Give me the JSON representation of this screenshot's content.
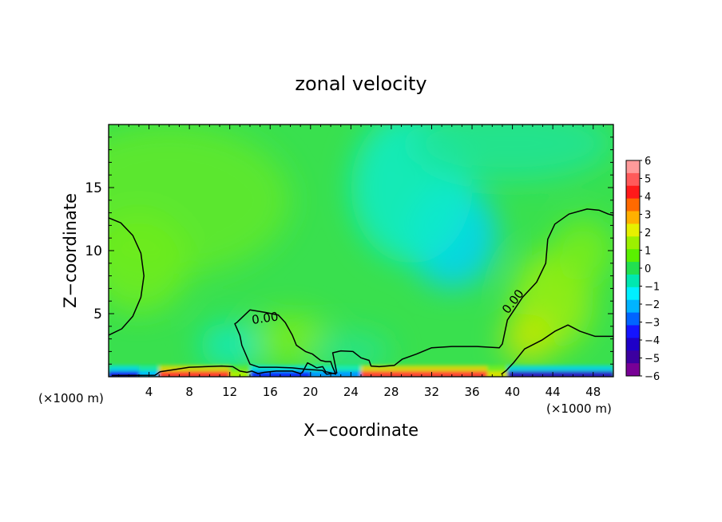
{
  "chart_data": {
    "type": "heatmap",
    "title": "zonal velocity",
    "xlabel": "X−coordinate",
    "ylabel": "Z−coordinate",
    "x_unit_left": "(×1000 m)",
    "x_unit_right": "(×1000 m)",
    "xlim": [
      0,
      50
    ],
    "ylim": [
      0,
      20
    ],
    "x_ticks": [
      4,
      8,
      12,
      16,
      20,
      24,
      28,
      32,
      36,
      40,
      44,
      48
    ],
    "x_tick_labels": [
      "4",
      "8",
      "12",
      "16",
      "20",
      "24",
      "28",
      "32",
      "36",
      "40",
      "44",
      "48"
    ],
    "y_ticks": [
      5,
      10,
      15
    ],
    "y_tick_labels": [
      "5",
      "10",
      "15"
    ],
    "colorbar": {
      "labels": [
        "6",
        "5",
        "4",
        "3",
        "2",
        "1",
        "0",
        "−1",
        "−2",
        "−3",
        "−4",
        "−5",
        "−6"
      ],
      "colors": [
        "#ff9a9a",
        "#ff5a5a",
        "#ff1a1a",
        "#ff6a00",
        "#ffb000",
        "#e6f000",
        "#9cf000",
        "#5af000",
        "#22e050",
        "#00e8b0",
        "#00f0ff",
        "#00b4ff",
        "#0064ff",
        "#1414ff",
        "#1e00c8",
        "#3c00a0",
        "#780096"
      ]
    },
    "contour_labels": [
      "0.00",
      "0.00"
    ],
    "field_blobs": [
      {
        "x": 34,
        "y": 11.2,
        "rx": 4.5,
        "ry": 4.2,
        "value": -2.2
      },
      {
        "x": 30,
        "y": 15,
        "rx": 6,
        "ry": 6,
        "value": -1.3
      },
      {
        "x": 40,
        "y": 18.5,
        "rx": 10,
        "ry": 3,
        "value": -0.8
      },
      {
        "x": 6,
        "y": 14,
        "rx": 12,
        "ry": 6,
        "value": 0.6
      },
      {
        "x": 3,
        "y": 9,
        "rx": 5,
        "ry": 4,
        "value": 0.8
      },
      {
        "x": 44,
        "y": 6,
        "rx": 4,
        "ry": 4,
        "value": 1.3
      },
      {
        "x": 41.5,
        "y": 3,
        "rx": 2.5,
        "ry": 2,
        "value": 1.8
      },
      {
        "x": 18,
        "y": 3,
        "rx": 4,
        "ry": 2,
        "value": 0.9
      },
      {
        "x": 12,
        "y": 2.5,
        "rx": 3,
        "ry": 1.8,
        "value": -1.2
      },
      {
        "x": 24,
        "y": 2,
        "rx": 4,
        "ry": 1.5,
        "value": -0.7
      },
      {
        "x": 47,
        "y": 10,
        "rx": 3,
        "ry": 2.5,
        "value": 0.9
      }
    ],
    "near_surface": [
      {
        "x0": 0,
        "x1": 3,
        "value": -4.5
      },
      {
        "x0": 3,
        "x1": 5,
        "value": -2.5
      },
      {
        "x0": 5,
        "x1": 12,
        "value": 4.8
      },
      {
        "x0": 12,
        "x1": 14,
        "value": 1.5
      },
      {
        "x0": 14,
        "x1": 20,
        "value": -4.2
      },
      {
        "x0": 20,
        "x1": 25,
        "value": -2.8
      },
      {
        "x0": 25,
        "x1": 37.5,
        "value": 5.0
      },
      {
        "x0": 37.5,
        "x1": 39.5,
        "value": 2.0
      },
      {
        "x0": 39.5,
        "x1": 50,
        "value": -4.8
      }
    ],
    "zero_contours": [
      [
        [
          0,
          12.6
        ],
        [
          1.2,
          12.2
        ],
        [
          2.4,
          11.2
        ],
        [
          3.2,
          9.8
        ],
        [
          3.5,
          8.0
        ],
        [
          3.2,
          6.3
        ],
        [
          2.4,
          4.8
        ],
        [
          1.3,
          3.8
        ],
        [
          0,
          3.3
        ]
      ],
      [
        [
          0.3,
          0.1
        ],
        [
          4.6,
          0.12
        ],
        [
          5.1,
          0.4
        ],
        [
          6.4,
          0.55
        ],
        [
          8,
          0.75
        ],
        [
          9.6,
          0.8
        ],
        [
          11.2,
          0.85
        ],
        [
          12.3,
          0.8
        ],
        [
          13.0,
          0.45
        ],
        [
          13.7,
          0.35
        ],
        [
          14.2,
          0.45
        ],
        [
          14.8,
          0.25
        ],
        [
          15.4,
          0.35
        ],
        [
          16.6,
          0.45
        ],
        [
          18.2,
          0.45
        ],
        [
          19.0,
          0.25
        ],
        [
          19.2,
          0.35
        ],
        [
          19.7,
          1.1
        ],
        [
          20.2,
          0.9
        ],
        [
          20.6,
          0.7
        ],
        [
          21.2,
          0.8
        ],
        [
          21.5,
          0.4
        ],
        [
          22.1,
          0.3
        ],
        [
          22.5,
          0.2
        ],
        [
          22.2,
          0.75
        ],
        [
          22.0,
          1.2
        ],
        [
          21.5,
          1.2
        ],
        [
          21.0,
          1.3
        ],
        [
          20.2,
          1.8
        ],
        [
          19.5,
          2.0
        ],
        [
          18.6,
          2.5
        ],
        [
          18.2,
          3.3
        ],
        [
          17.5,
          4.3
        ],
        [
          16.8,
          4.9
        ],
        [
          15.5,
          5.1
        ],
        [
          14.0,
          5.3
        ],
        [
          12.7,
          4.3
        ],
        [
          12.5,
          4.2
        ],
        [
          13.0,
          3.3
        ],
        [
          13.2,
          2.5
        ],
        [
          14.0,
          1.0
        ],
        [
          14.9,
          0.75
        ],
        [
          16.6,
          0.75
        ],
        [
          18.2,
          0.7
        ],
        [
          19.4,
          0.6
        ],
        [
          20.2,
          0.55
        ],
        [
          21.2,
          0.5
        ],
        [
          21.6,
          0.2
        ],
        [
          22.6,
          0.3
        ],
        [
          22.2,
          1.9
        ],
        [
          23.0,
          2.05
        ],
        [
          24.2,
          2.0
        ],
        [
          25.0,
          1.5
        ],
        [
          25.8,
          1.3
        ],
        [
          26.0,
          0.85
        ],
        [
          26.8,
          0.8
        ],
        [
          28.3,
          0.9
        ],
        [
          29.1,
          1.4
        ],
        [
          30.5,
          1.8
        ],
        [
          32.0,
          2.3
        ],
        [
          34.0,
          2.4
        ],
        [
          36.5,
          2.4
        ],
        [
          38.7,
          2.3
        ],
        [
          39.0,
          2.6
        ],
        [
          39.5,
          4.5
        ],
        [
          41.0,
          6.3
        ],
        [
          42.4,
          7.5
        ],
        [
          43.3,
          9.0
        ],
        [
          43.5,
          10.9
        ],
        [
          44.2,
          12.1
        ],
        [
          45.6,
          12.9
        ],
        [
          47.4,
          13.3
        ],
        [
          48.6,
          13.2
        ],
        [
          49.5,
          12.9
        ],
        [
          50,
          12.8
        ]
      ],
      [
        [
          38.9,
          0.2
        ],
        [
          39.4,
          0.5
        ],
        [
          40.1,
          1.1
        ],
        [
          41.2,
          2.2
        ],
        [
          42.9,
          2.9
        ],
        [
          44.2,
          3.6
        ],
        [
          45.5,
          4.1
        ],
        [
          46.7,
          3.6
        ],
        [
          48.2,
          3.2
        ],
        [
          50,
          3.2
        ]
      ]
    ]
  }
}
